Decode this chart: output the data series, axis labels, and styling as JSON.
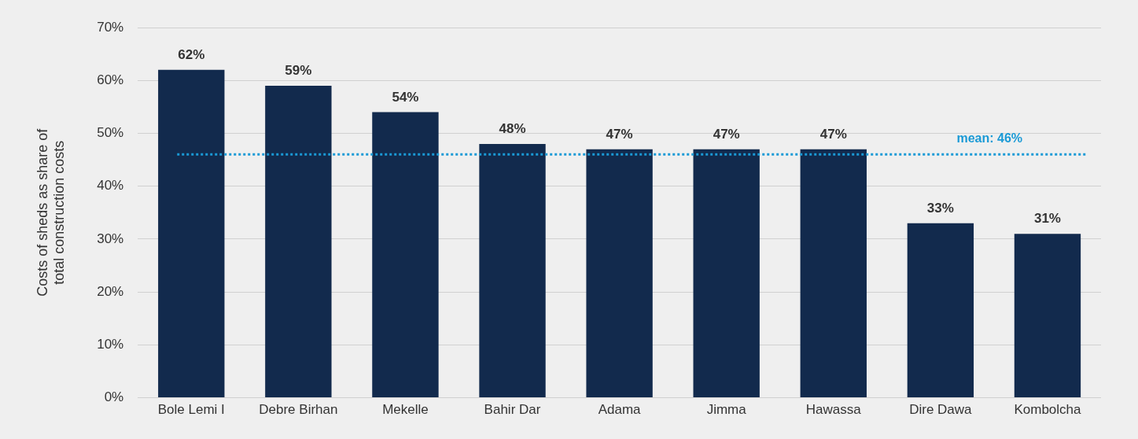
{
  "chart_data": {
    "type": "bar",
    "ylabel": "Costs of sheds as share of total construction costs",
    "categories": [
      "Bole Lemi I",
      "Debre Birhan",
      "Mekelle",
      "Bahir Dar",
      "Adama",
      "Jimma",
      "Hawassa",
      "Dire Dawa",
      "Kombolcha"
    ],
    "values": [
      62,
      59,
      54,
      48,
      47,
      47,
      47,
      33,
      31
    ],
    "value_labels": [
      "62%",
      "59%",
      "54%",
      "48%",
      "47%",
      "47%",
      "47%",
      "33%",
      "31%"
    ],
    "color": "#122a4d",
    "ylim": [
      0,
      70
    ],
    "yticks": [
      {
        "value": 0,
        "label": "0%"
      },
      {
        "value": 10,
        "label": "10%"
      },
      {
        "value": 20,
        "label": "20%"
      },
      {
        "value": 30,
        "label": "30%"
      },
      {
        "value": 40,
        "label": "40%"
      },
      {
        "value": 50,
        "label": "50%"
      },
      {
        "value": 60,
        "label": "60%"
      },
      {
        "value": 70,
        "label": "70%"
      }
    ],
    "grid": "y",
    "ref_lines": [
      {
        "axis": "y",
        "value": 46,
        "label": "mean: 46%",
        "color": "#1a9ad6",
        "line_style": "dotted"
      }
    ]
  }
}
